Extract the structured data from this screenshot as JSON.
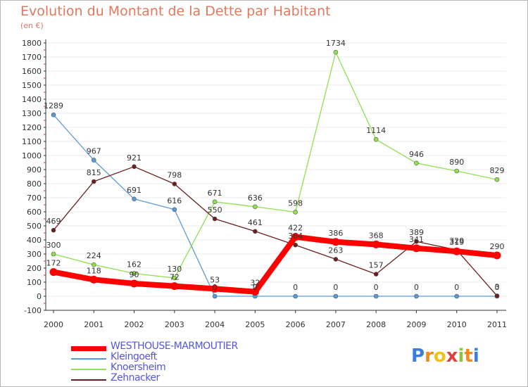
{
  "header": {
    "title": "Evolution du Montant de la Dette par Habitant",
    "unit": "(en €)"
  },
  "logo": {
    "text": "Proxiti",
    "letters": [
      "P",
      "r",
      "o",
      "x",
      "i",
      "t",
      "i"
    ]
  },
  "colors": {
    "title": "#e07a5f",
    "grid": "#eeeeee",
    "axis": "#333333",
    "legend_text": "#5555dd"
  },
  "chart_data": {
    "type": "line",
    "title": "Evolution du Montant de la Dette par Habitant",
    "ylabel": "(en €)",
    "xlabel": "",
    "x": [
      "2000",
      "2001",
      "2002",
      "2003",
      "2004",
      "2005",
      "2006",
      "2007",
      "2008",
      "2009",
      "2010",
      "2011"
    ],
    "ylim": [
      -100,
      1800
    ],
    "yticks": [
      -100,
      0,
      100,
      200,
      300,
      400,
      500,
      600,
      700,
      800,
      900,
      1000,
      1100,
      1200,
      1300,
      1400,
      1500,
      1600,
      1700,
      1800
    ],
    "grid": true,
    "legend": "bottom-left",
    "series": [
      {
        "name": "WESTHOUSE-MARMOUTIER",
        "color": "#ff0000",
        "values": [
          172,
          118,
          90,
          72,
          53,
          32,
          422,
          386,
          368,
          341,
          319,
          290
        ],
        "labels": [
          "172",
          "118",
          "90",
          "72",
          "53",
          "32",
          "422",
          "386",
          "368",
          "341",
          "319",
          "290"
        ]
      },
      {
        "name": "Kleingoeft",
        "color": "#5b9bd5",
        "values": [
          1289,
          967,
          691,
          616,
          0,
          0,
          0,
          0,
          0,
          0,
          0,
          0
        ],
        "labels": [
          "1289",
          "967",
          "691",
          "616",
          "0",
          "0",
          "0",
          "0",
          "0",
          "0",
          "0",
          "0"
        ]
      },
      {
        "name": "Knoersheim",
        "color": "#90e050",
        "values": [
          300,
          224,
          162,
          130,
          671,
          636,
          598,
          1734,
          1114,
          946,
          890,
          829
        ],
        "labels": [
          "300",
          "224",
          "162",
          "130",
          "671",
          "636",
          "598",
          "1734",
          "1114",
          "946",
          "890",
          "829"
        ]
      },
      {
        "name": "Zehnacker",
        "color": "#6b1e1e",
        "values": [
          469,
          815,
          921,
          798,
          550,
          461,
          364,
          263,
          157,
          389,
          329,
          3
        ],
        "labels": [
          "469",
          "815",
          "921",
          "798",
          "550",
          "461",
          "364",
          "263",
          "157",
          "389",
          "329",
          "3"
        ]
      }
    ]
  }
}
